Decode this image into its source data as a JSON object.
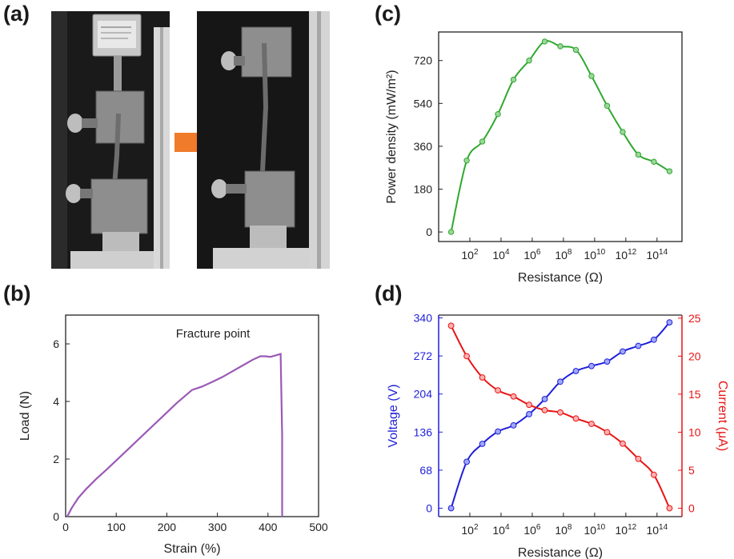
{
  "panels": {
    "a": "(a)",
    "b": "(b)",
    "c": "(c)",
    "d": "(d)"
  },
  "colors": {
    "load_curve": "#9b59b6",
    "power_curve": "#2fa82f",
    "voltage_curve": "#1f1fd8",
    "current_curve": "#e81414",
    "arrow": "#f07b2a"
  },
  "chart_data": [
    {
      "panel": "b",
      "type": "line",
      "xlabel": "Strain (%)",
      "ylabel": "Load (N)",
      "xlim": [
        0,
        500
      ],
      "ylim": [
        0,
        7
      ],
      "xticks": [
        0,
        100,
        200,
        300,
        400,
        500
      ],
      "yticks": [
        0,
        2,
        4,
        6
      ],
      "annotation": "Fracture point",
      "series": [
        {
          "x": [
            3,
            12,
            25,
            40,
            60,
            80,
            100,
            130,
            160,
            190,
            220,
            250,
            270,
            290,
            310,
            330,
            350,
            370,
            385,
            395,
            405,
            415,
            425,
            428,
            428
          ],
          "y": [
            0,
            0.3,
            0.65,
            0.95,
            1.3,
            1.62,
            1.95,
            2.45,
            2.95,
            3.45,
            3.95,
            4.4,
            4.52,
            4.68,
            4.85,
            5.05,
            5.25,
            5.45,
            5.57,
            5.57,
            5.55,
            5.6,
            5.65,
            2.8,
            0
          ]
        }
      ]
    },
    {
      "panel": "c",
      "type": "line",
      "xlabel": "Resistance (Ω)",
      "ylabel": "Power density (mW/m²)",
      "xscale": "log",
      "ylim": [
        -40,
        840
      ],
      "yticks": [
        0,
        180,
        360,
        540,
        720
      ],
      "xtick_exponents": [
        2,
        4,
        6,
        8,
        10,
        12,
        14
      ],
      "series": [
        {
          "x_log10": [
            0.8,
            1.8,
            2.8,
            3.8,
            4.8,
            5.8,
            6.8,
            7.8,
            8.8,
            9.8,
            10.8,
            11.8,
            12.8,
            13.8,
            14.8
          ],
          "y": [
            0,
            300,
            380,
            495,
            640,
            720,
            800,
            780,
            765,
            655,
            530,
            420,
            325,
            295,
            255
          ]
        }
      ]
    },
    {
      "panel": "d",
      "type": "line",
      "xlabel": "Resistance (Ω)",
      "ylabel_left": "Voltage (V)",
      "ylabel_right": "Current (μA)",
      "xscale": "log",
      "ylim_left": [
        -15,
        345
      ],
      "ylim_right": [
        -1.1,
        25.4
      ],
      "yticks_left": [
        0,
        68,
        136,
        204,
        272,
        340
      ],
      "yticks_right": [
        0,
        5,
        10,
        15,
        20,
        25
      ],
      "xtick_exponents": [
        2,
        4,
        6,
        8,
        10,
        12,
        14
      ],
      "series": [
        {
          "axis": "left",
          "x_log10": [
            0.8,
            1.8,
            2.8,
            3.8,
            4.8,
            5.8,
            6.8,
            7.8,
            8.8,
            9.8,
            10.8,
            11.8,
            12.8,
            13.8,
            14.8
          ],
          "y": [
            0,
            83,
            115,
            137,
            148,
            168,
            195,
            226,
            245,
            254,
            262,
            280,
            290,
            301,
            332
          ]
        },
        {
          "axis": "right",
          "x_log10": [
            0.8,
            1.8,
            2.8,
            3.8,
            4.8,
            5.8,
            6.8,
            7.8,
            8.8,
            9.8,
            10.8,
            11.8,
            12.8,
            13.8,
            14.8
          ],
          "y": [
            24,
            20,
            17.2,
            15.5,
            14.7,
            13.6,
            12.9,
            12.6,
            11.8,
            11.1,
            10,
            8.5,
            6.5,
            4.4,
            0
          ]
        }
      ]
    }
  ]
}
